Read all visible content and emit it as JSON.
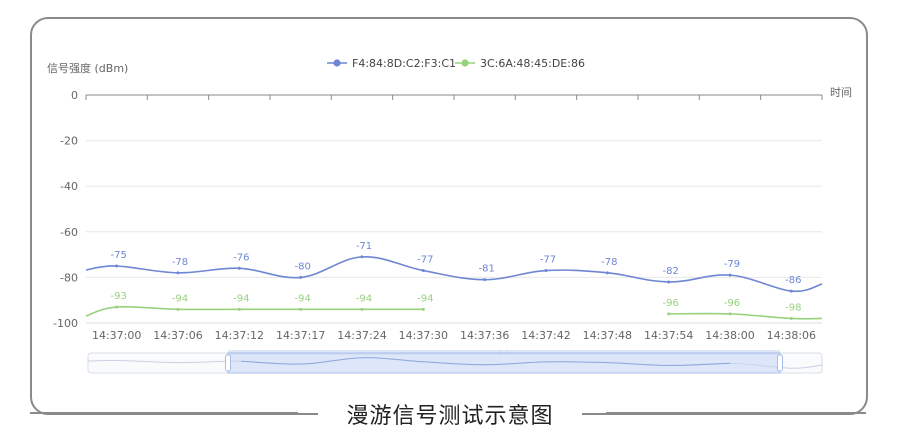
{
  "caption": "漫游信号测试示意图",
  "colors": {
    "series_a": "#6e86d3",
    "series_b": "#96d27d",
    "grid": "#e8e8e8",
    "axis": "#888888",
    "frame": "#8a8a8a",
    "slider_fill": "#c7d6f6",
    "slider_border": "#b8c3dc"
  },
  "chart_data": {
    "type": "line",
    "ylabel": "信号强度 (dBm)",
    "xlabel": "时间",
    "ylim": [
      -100,
      0
    ],
    "yticks": [
      0,
      -20,
      -40,
      -60,
      -80,
      -100
    ],
    "x_axis_position": "top",
    "grid": true,
    "legend_position": "top-center",
    "categories": [
      "14:37:00",
      "14:37:06",
      "14:37:12",
      "14:37:17",
      "14:37:24",
      "14:37:30",
      "14:37:36",
      "14:37:42",
      "14:37:48",
      "14:37:54",
      "14:38:00",
      "14:38:06"
    ],
    "series": [
      {
        "name": "F4:84:8D:C2:F3:C1",
        "values": [
          -75,
          -78,
          -76,
          -80,
          -71,
          -77,
          -81,
          -77,
          -78,
          -82,
          -79,
          -86
        ]
      },
      {
        "name": "3C:6A:48:45:DE:86",
        "values": [
          -93,
          -94,
          -94,
          -94,
          -94,
          -94,
          null,
          null,
          null,
          -96,
          -96,
          -98
        ]
      }
    ]
  }
}
